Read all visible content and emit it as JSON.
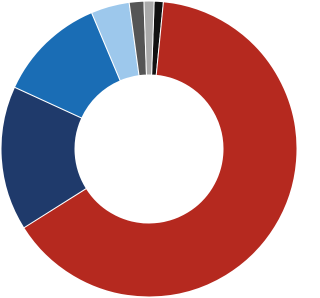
{
  "chart_data": {
    "type": "donut",
    "values": [
      1.0,
      64.5,
      15.8,
      11.8,
      4.2,
      1.6,
      1.1
    ],
    "colors": [
      "#111111",
      "#b5291f",
      "#1f3a6b",
      "#1a6db5",
      "#9dc8ec",
      "#555555",
      "#aaaaaa"
    ]
  }
}
